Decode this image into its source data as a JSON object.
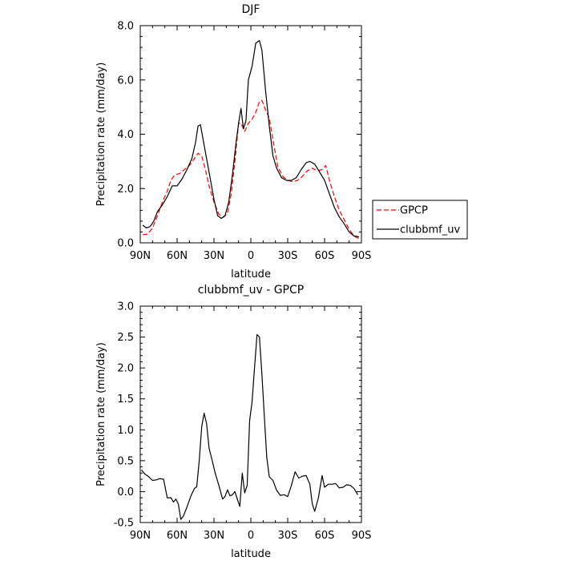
{
  "chart_data": [
    {
      "type": "line",
      "title": "DJF",
      "xlabel": "latitude",
      "ylabel": "Precipitation rate (mm/day)",
      "xlim": [
        -90,
        90
      ],
      "ylim": [
        0,
        8
      ],
      "x_ticks": [
        {
          "value": -90,
          "label": "90N"
        },
        {
          "value": -60,
          "label": "60N"
        },
        {
          "value": -30,
          "label": "30N"
        },
        {
          "value": 0,
          "label": "0"
        },
        {
          "value": 30,
          "label": "30S"
        },
        {
          "value": 60,
          "label": "60S"
        },
        {
          "value": 90,
          "label": "90S"
        }
      ],
      "y_ticks": [
        {
          "value": 0,
          "label": "0.0"
        },
        {
          "value": 2,
          "label": "2.0"
        },
        {
          "value": 4,
          "label": "4.0"
        },
        {
          "value": 6,
          "label": "6.0"
        },
        {
          "value": 8,
          "label": "8.0"
        }
      ],
      "grid": false,
      "legend_position": "right, outside plot, lower",
      "series": [
        {
          "name": "GPCP",
          "color": "#ff0000",
          "dash": "dashed",
          "points": [
            [
              -88,
              0.3
            ],
            [
              -84,
              0.32
            ],
            [
              -80,
              0.55
            ],
            [
              -76,
              1.0
            ],
            [
              -72,
              1.5
            ],
            [
              -68,
              1.9
            ],
            [
              -65,
              2.3
            ],
            [
              -62,
              2.5
            ],
            [
              -58,
              2.55
            ],
            [
              -54,
              2.7
            ],
            [
              -50,
              2.85
            ],
            [
              -46,
              3.1
            ],
            [
              -43,
              3.3
            ],
            [
              -40,
              3.2
            ],
            [
              -37,
              2.7
            ],
            [
              -34,
              2.1
            ],
            [
              -30,
              1.5
            ],
            [
              -26,
              1.05
            ],
            [
              -22,
              0.95
            ],
            [
              -19,
              1.1
            ],
            [
              -16,
              1.8
            ],
            [
              -13,
              3.0
            ],
            [
              -10,
              4.4
            ],
            [
              -8,
              4.4
            ],
            [
              -5,
              4.1
            ],
            [
              -2,
              4.4
            ],
            [
              1,
              4.55
            ],
            [
              4,
              4.8
            ],
            [
              7,
              5.2
            ],
            [
              9,
              5.25
            ],
            [
              12,
              4.9
            ],
            [
              15,
              4.6
            ],
            [
              18,
              3.8
            ],
            [
              22,
              2.8
            ],
            [
              26,
              2.45
            ],
            [
              30,
              2.3
            ],
            [
              34,
              2.25
            ],
            [
              38,
              2.3
            ],
            [
              42,
              2.45
            ],
            [
              46,
              2.65
            ],
            [
              50,
              2.75
            ],
            [
              54,
              2.65
            ],
            [
              58,
              2.7
            ],
            [
              61,
              2.85
            ],
            [
              64,
              2.3
            ],
            [
              68,
              1.7
            ],
            [
              72,
              1.2
            ],
            [
              76,
              0.85
            ],
            [
              80,
              0.5
            ],
            [
              84,
              0.25
            ],
            [
              88,
              0.15
            ]
          ]
        },
        {
          "name": "clubbmf_uv",
          "color": "#000000",
          "dash": "solid",
          "points": [
            [
              -88,
              0.65
            ],
            [
              -85,
              0.55
            ],
            [
              -82,
              0.6
            ],
            [
              -79,
              0.8
            ],
            [
              -76,
              1.15
            ],
            [
              -72,
              1.4
            ],
            [
              -68,
              1.7
            ],
            [
              -64,
              2.1
            ],
            [
              -60,
              2.1
            ],
            [
              -56,
              2.35
            ],
            [
              -52,
              2.7
            ],
            [
              -48,
              3.1
            ],
            [
              -45,
              3.7
            ],
            [
              -43,
              4.3
            ],
            [
              -41,
              4.35
            ],
            [
              -38,
              3.6
            ],
            [
              -34,
              2.6
            ],
            [
              -30,
              1.6
            ],
            [
              -27,
              1.0
            ],
            [
              -24,
              0.9
            ],
            [
              -21,
              1.0
            ],
            [
              -18,
              1.5
            ],
            [
              -15,
              2.5
            ],
            [
              -12,
              3.7
            ],
            [
              -10,
              4.4
            ],
            [
              -8,
              4.95
            ],
            [
              -6,
              4.2
            ],
            [
              -4,
              4.5
            ],
            [
              -2,
              6.0
            ],
            [
              1,
              6.5
            ],
            [
              4,
              7.35
            ],
            [
              7,
              7.45
            ],
            [
              9,
              7.1
            ],
            [
              12,
              5.6
            ],
            [
              15,
              4.3
            ],
            [
              18,
              3.2
            ],
            [
              21,
              2.75
            ],
            [
              25,
              2.4
            ],
            [
              29,
              2.3
            ],
            [
              33,
              2.3
            ],
            [
              37,
              2.4
            ],
            [
              41,
              2.7
            ],
            [
              45,
              2.95
            ],
            [
              48,
              3.0
            ],
            [
              52,
              2.9
            ],
            [
              56,
              2.6
            ],
            [
              60,
              2.3
            ],
            [
              64,
              1.8
            ],
            [
              68,
              1.3
            ],
            [
              72,
              0.95
            ],
            [
              76,
              0.7
            ],
            [
              80,
              0.4
            ],
            [
              84,
              0.25
            ],
            [
              88,
              0.22
            ]
          ]
        }
      ]
    },
    {
      "type": "line",
      "title": "clubbmf_uv - GPCP",
      "xlabel": "latitude",
      "ylabel": "Precipitation rate (mm/day)",
      "xlim": [
        -90,
        90
      ],
      "ylim": [
        -0.5,
        3.0
      ],
      "x_ticks": [
        {
          "value": -90,
          "label": "90N"
        },
        {
          "value": -60,
          "label": "60N"
        },
        {
          "value": -30,
          "label": "30N"
        },
        {
          "value": 0,
          "label": "0"
        },
        {
          "value": 30,
          "label": "30S"
        },
        {
          "value": 60,
          "label": "60S"
        },
        {
          "value": 90,
          "label": "90S"
        }
      ],
      "y_ticks": [
        {
          "value": -0.5,
          "label": "-0.5"
        },
        {
          "value": 0,
          "label": "0.0"
        },
        {
          "value": 0.5,
          "label": "0.5"
        },
        {
          "value": 1.0,
          "label": "1.0"
        },
        {
          "value": 1.5,
          "label": "1.5"
        },
        {
          "value": 2.0,
          "label": "2.0"
        },
        {
          "value": 2.5,
          "label": "2.5"
        },
        {
          "value": 3.0,
          "label": "3.0"
        }
      ],
      "grid": false,
      "series": [
        {
          "color": "#000000",
          "dash": "solid",
          "points": [
            [
              -89,
              0.35
            ],
            [
              -86,
              0.28
            ],
            [
              -83,
              0.24
            ],
            [
              -80,
              0.18
            ],
            [
              -77,
              0.19
            ],
            [
              -74,
              0.21
            ],
            [
              -71,
              0.2
            ],
            [
              -68,
              -0.1
            ],
            [
              -65,
              -0.1
            ],
            [
              -63,
              -0.17
            ],
            [
              -61,
              -0.12
            ],
            [
              -59,
              -0.2
            ],
            [
              -57,
              -0.45
            ],
            [
              -55,
              -0.4
            ],
            [
              -52,
              -0.25
            ],
            [
              -49,
              -0.08
            ],
            [
              -46,
              0.05
            ],
            [
              -44,
              0.08
            ],
            [
              -42,
              0.5
            ],
            [
              -40,
              1.05
            ],
            [
              -38,
              1.27
            ],
            [
              -36,
              1.1
            ],
            [
              -34,
              0.7
            ],
            [
              -32,
              0.55
            ],
            [
              -29,
              0.3
            ],
            [
              -26,
              0.1
            ],
            [
              -23,
              -0.12
            ],
            [
              -21,
              -0.08
            ],
            [
              -19,
              0.03
            ],
            [
              -17,
              -0.07
            ],
            [
              -15,
              -0.05
            ],
            [
              -13,
              0.0
            ],
            [
              -11,
              -0.12
            ],
            [
              -9,
              -0.24
            ],
            [
              -7,
              0.3
            ],
            [
              -5,
              -0.02
            ],
            [
              -3,
              0.1
            ],
            [
              -1,
              1.15
            ],
            [
              1,
              1.45
            ],
            [
              3,
              2.0
            ],
            [
              5,
              2.54
            ],
            [
              7,
              2.5
            ],
            [
              9,
              1.9
            ],
            [
              11,
              1.2
            ],
            [
              13,
              0.55
            ],
            [
              15,
              0.24
            ],
            [
              18,
              0.18
            ],
            [
              21,
              0.02
            ],
            [
              24,
              -0.06
            ],
            [
              27,
              -0.05
            ],
            [
              30,
              -0.08
            ],
            [
              33,
              0.1
            ],
            [
              36,
              0.32
            ],
            [
              39,
              0.22
            ],
            [
              42,
              0.25
            ],
            [
              45,
              0.26
            ],
            [
              48,
              0.12
            ],
            [
              50,
              -0.2
            ],
            [
              52,
              -0.32
            ],
            [
              55,
              -0.1
            ],
            [
              58,
              0.26
            ],
            [
              60,
              0.07
            ],
            [
              63,
              0.12
            ],
            [
              66,
              0.12
            ],
            [
              69,
              0.13
            ],
            [
              72,
              0.06
            ],
            [
              75,
              0.07
            ],
            [
              78,
              0.11
            ],
            [
              81,
              0.1
            ],
            [
              84,
              0.05
            ],
            [
              87,
              -0.05
            ]
          ]
        }
      ]
    }
  ]
}
